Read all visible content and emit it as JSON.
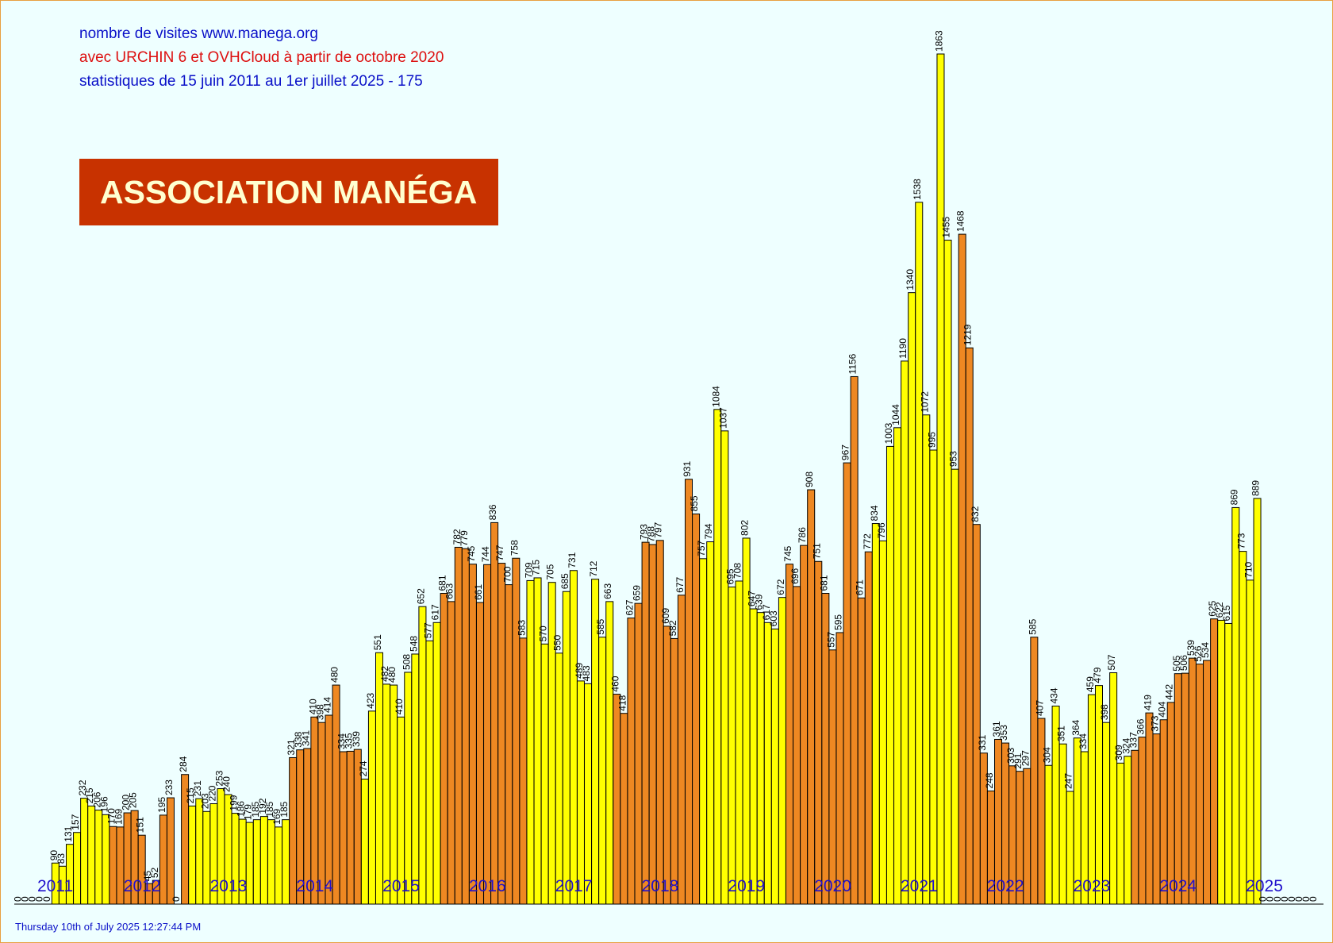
{
  "header": {
    "line1": "nombre de visites www.manega.org",
    "line2": "avec URCHIN 6 et OVHCloud à partir de octobre 2020",
    "line3": "statistiques de 15 juin 2011 au 1er juillet 2025 - 175",
    "banner": "ASSOCIATION MANÉGA"
  },
  "footer": {
    "timestamp": "Thursday 10th of July 2025 12:27:44 PM"
  },
  "colors": {
    "background": "#eeffff",
    "yellow": "#ffff00",
    "orange": "#ee8822",
    "year_label": "#2010cc",
    "banner": "#c83200"
  },
  "chart_data": {
    "type": "bar",
    "ylim": [
      0,
      1900
    ],
    "year_labels": [
      "2011",
      "2012",
      "2013",
      "2014",
      "2015",
      "2016",
      "2017",
      "2018",
      "2019",
      "2020",
      "2021",
      "2022",
      "2023",
      "2024",
      "2025"
    ],
    "series": [
      {
        "values": [
          0,
          0,
          0,
          0,
          0,
          90,
          83,
          131,
          157,
          232,
          215,
          206,
          196,
          170,
          169,
          200,
          205,
          151,
          45,
          52,
          195,
          233,
          0,
          284,
          215,
          231,
          203,
          220,
          253,
          240,
          199,
          186,
          179,
          185,
          192,
          185,
          169,
          185,
          321,
          338,
          341,
          410,
          398,
          414,
          480,
          334,
          335,
          339,
          274,
          423,
          551,
          482,
          480,
          410,
          508,
          548,
          652,
          577,
          617,
          681,
          663,
          782,
          779,
          745,
          661,
          744,
          836,
          747,
          700,
          758,
          583,
          709,
          715,
          570,
          705,
          550,
          685,
          731,
          489,
          483,
          712,
          585,
          663,
          460,
          418,
          627,
          659,
          793,
          788,
          797,
          609,
          582,
          677,
          931,
          855,
          757,
          794,
          1084,
          1037,
          695,
          708,
          802,
          647,
          639,
          617,
          603,
          672,
          745,
          696,
          786,
          908,
          751,
          681,
          557,
          595,
          967,
          1156,
          671,
          772,
          834,
          796,
          1003,
          1044,
          1190,
          1340,
          1538,
          1072,
          995,
          1863,
          1455,
          953,
          1468,
          1219,
          832,
          331,
          248,
          361,
          353,
          303,
          291,
          297,
          585,
          407,
          304,
          434,
          351,
          247,
          364,
          334,
          459,
          479,
          398,
          507,
          309,
          324,
          337,
          366,
          419,
          373,
          404,
          442,
          505,
          506,
          539,
          526,
          534,
          625,
          622,
          615,
          869,
          773,
          710,
          889,
          0,
          0,
          0,
          0,
          0,
          0,
          0,
          0
        ],
        "colors": [
          "o",
          "o",
          "o",
          "o",
          "o",
          "y",
          "y",
          "y",
          "y",
          "y",
          "y",
          "y",
          "y",
          "o",
          "o",
          "o",
          "o",
          "o",
          "o",
          "o",
          "o",
          "o",
          "o",
          "o",
          "y",
          "y",
          "y",
          "y",
          "y",
          "y",
          "y",
          "y",
          "y",
          "y",
          "y",
          "y",
          "y",
          "y",
          "o",
          "o",
          "o",
          "o",
          "o",
          "o",
          "o",
          "o",
          "o",
          "o",
          "y",
          "y",
          "y",
          "y",
          "y",
          "y",
          "y",
          "y",
          "y",
          "y",
          "y",
          "o",
          "o",
          "o",
          "o",
          "o",
          "o",
          "o",
          "o",
          "o",
          "o",
          "o",
          "o",
          "y",
          "y",
          "y",
          "y",
          "y",
          "y",
          "y",
          "y",
          "y",
          "y",
          "y",
          "y",
          "o",
          "o",
          "o",
          "o",
          "o",
          "o",
          "o",
          "o",
          "o",
          "o",
          "o",
          "o",
          "y",
          "y",
          "y",
          "y",
          "y",
          "y",
          "y",
          "y",
          "y",
          "y",
          "y",
          "y",
          "o",
          "o",
          "o",
          "o",
          "o",
          "o",
          "o",
          "o",
          "o",
          "o",
          "o",
          "o",
          "y",
          "y",
          "y",
          "y",
          "y",
          "y",
          "y",
          "y",
          "y",
          "y",
          "y",
          "y",
          "o",
          "o",
          "o",
          "o",
          "o",
          "o",
          "o",
          "o",
          "o",
          "o",
          "o",
          "o",
          "y",
          "y",
          "y",
          "y",
          "y",
          "y",
          "y",
          "y",
          "y",
          "y",
          "y",
          "y",
          "o",
          "o",
          "o",
          "o",
          "o",
          "o",
          "o",
          "o",
          "o",
          "o",
          "o",
          "o",
          "y",
          "y",
          "y",
          "y",
          "y",
          "y",
          "o",
          "o",
          "o",
          "o",
          "o",
          "o"
        ]
      }
    ]
  }
}
